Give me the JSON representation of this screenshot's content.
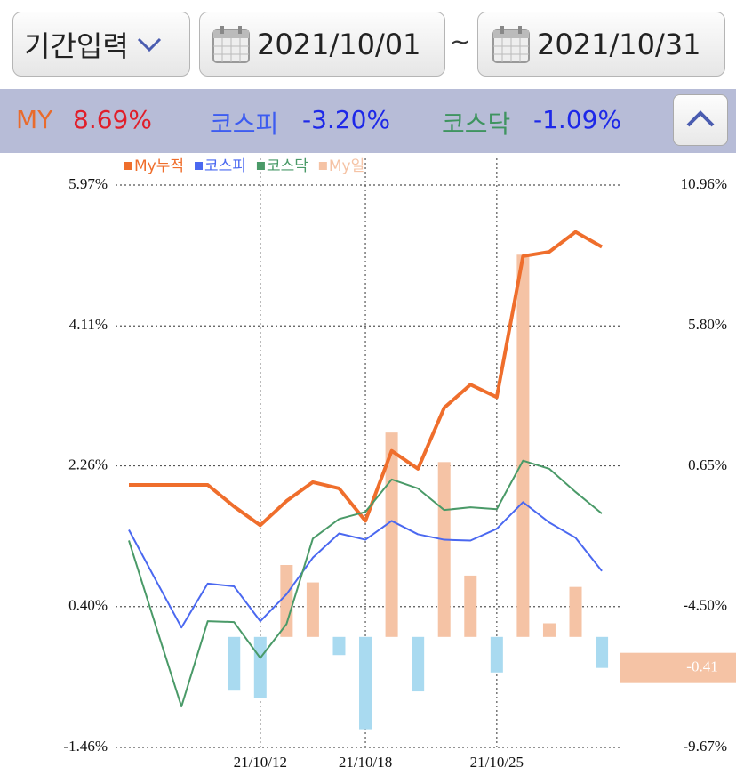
{
  "header": {
    "period": "기간입력",
    "start_date": "2021/10/01",
    "separator": "~",
    "end_date": "2021/10/31"
  },
  "summary": [
    {
      "label": "MY",
      "value": "8.69%"
    },
    {
      "label": "코스피",
      "value": "-3.20%"
    },
    {
      "label": "코스닥",
      "value": "-1.09%"
    }
  ],
  "chart_data": {
    "type": "line",
    "categories": [
      null,
      null,
      null,
      null,
      null,
      "21/10/12",
      null,
      null,
      null,
      "21/10/18",
      null,
      null,
      null,
      null,
      "21/10/25",
      null,
      null,
      null,
      null
    ],
    "ylim": [
      -1.46,
      5.97
    ],
    "yticks": [
      {
        "value": 5.97,
        "label": "5.97%"
      },
      {
        "value": 4.11,
        "label": "4.11%"
      },
      {
        "value": 2.26,
        "label": "2.26%"
      },
      {
        "value": 0.4,
        "label": "0.40%"
      },
      {
        "value": -1.46,
        "label": "-1.46%"
      }
    ],
    "y2lim": [
      -9.67,
      10.96
    ],
    "y2ticks": [
      {
        "value": 10.96,
        "label": "10.96%"
      },
      {
        "value": 5.8,
        "label": "5.80%"
      },
      {
        "value": 0.65,
        "label": "0.65%"
      },
      {
        "value": -4.5,
        "label": "-4.50%"
      },
      {
        "value": -9.67,
        "label": "-9.67%"
      }
    ],
    "grid": true,
    "last_value_badge": true,
    "series": [
      {
        "name": "My누적",
        "type": "line",
        "axis": "y2",
        "color": "#ef6e2c",
        "values": [
          -0.04,
          -0.04,
          -0.04,
          -0.04,
          -0.83,
          -1.52,
          -0.63,
          0.06,
          -0.17,
          -1.36,
          1.21,
          0.55,
          2.79,
          3.64,
          3.18,
          8.35,
          8.51,
          9.24,
          8.69
        ]
      },
      {
        "name": "코스피",
        "type": "line",
        "axis": "y2",
        "color": "#4a68f0",
        "values": [
          -1.69,
          -3.49,
          -5.27,
          -3.66,
          -3.76,
          -5.04,
          -4.05,
          -2.71,
          -1.82,
          -2.05,
          -1.36,
          -1.85,
          -2.05,
          -2.08,
          -1.65,
          -0.67,
          -1.42,
          -1.98,
          -3.2
        ]
      },
      {
        "name": "코스닥",
        "type": "line",
        "axis": "y2",
        "color": "#4a9a68",
        "values": [
          -2.08,
          -5.14,
          -8.17,
          -5.04,
          -5.07,
          -6.39,
          -5.14,
          -2.01,
          -1.29,
          -1.03,
          0.16,
          -0.17,
          -0.96,
          -0.86,
          -0.93,
          0.85,
          0.55,
          -0.3,
          -1.09
        ]
      },
      {
        "name": "My일",
        "type": "bar",
        "axis": "y",
        "color": "#f5c3a5",
        "negative_color": "#a9daf0",
        "values": [
          0,
          0,
          0,
          0,
          -0.71,
          -0.81,
          0.95,
          0.72,
          -0.24,
          -1.22,
          2.7,
          -0.72,
          2.31,
          0.81,
          -0.47,
          5.05,
          0.18,
          0.66,
          -0.41
        ]
      }
    ]
  }
}
